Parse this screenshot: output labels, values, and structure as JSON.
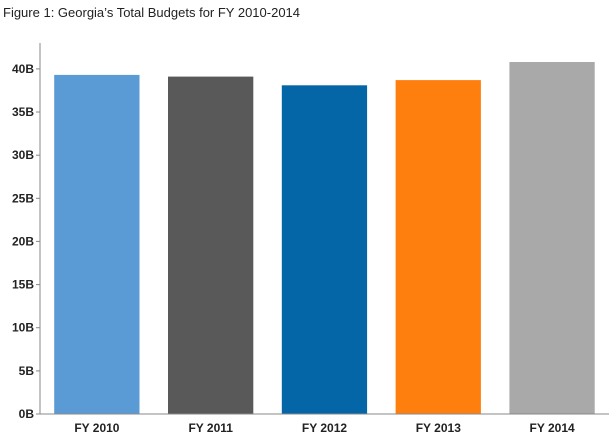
{
  "chart_data": {
    "type": "bar",
    "title": "Figure 1: Georgia’s Total Budgets for FY 2010-2014",
    "xlabel": "",
    "ylabel": "",
    "categories": [
      "FY 2010",
      "FY 2011",
      "FY 2012",
      "FY 2013",
      "FY 2014"
    ],
    "values": [
      39.3,
      39.1,
      38.1,
      38.7,
      40.8
    ],
    "value_unit": "billions",
    "ylim": [
      0,
      43
    ],
    "yticks": [
      0,
      5,
      10,
      15,
      20,
      25,
      30,
      35,
      40
    ],
    "ytick_labels": [
      "0B",
      "5B",
      "10B",
      "15B",
      "20B",
      "25B",
      "30B",
      "35B",
      "40B"
    ],
    "colors": [
      "#5b9bd5",
      "#595959",
      "#0466a6",
      "#ff7f0e",
      "#a9a9a9"
    ],
    "grid": false,
    "legend": "none"
  }
}
